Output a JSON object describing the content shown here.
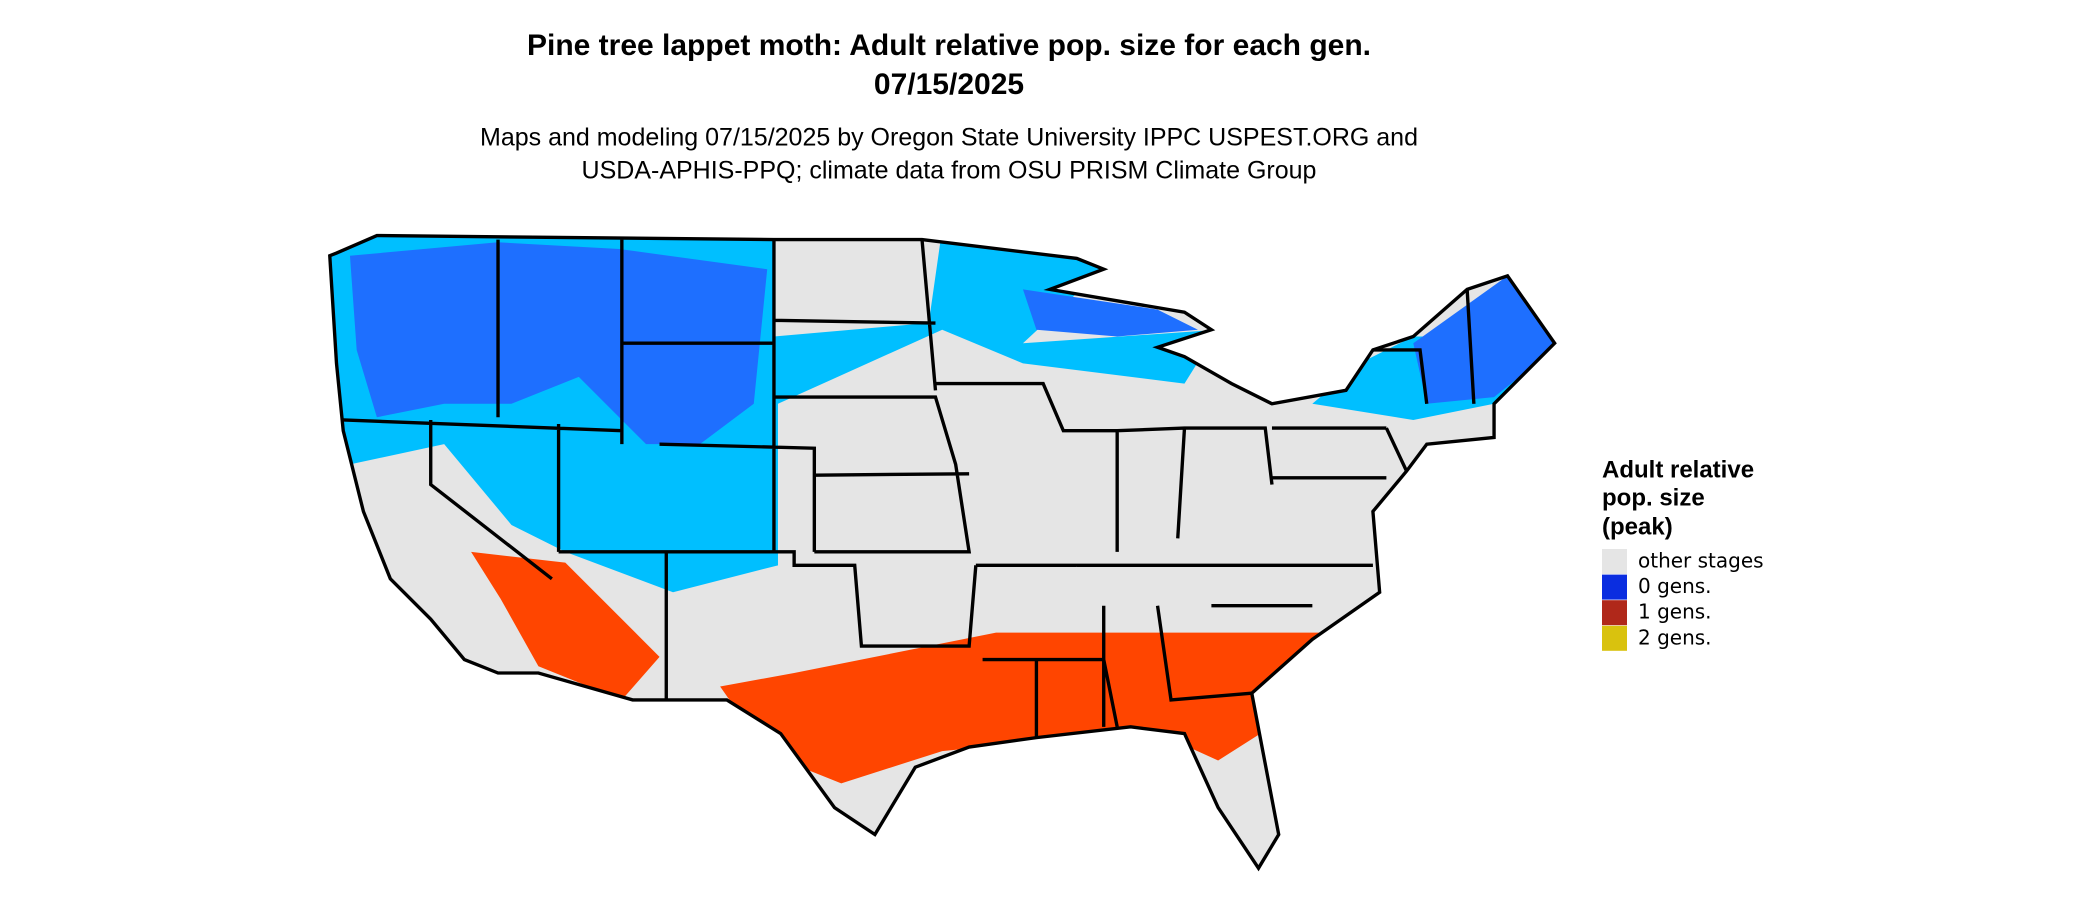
{
  "header": {
    "title_lines": [
      "Pine tree lappet moth: Adult relative pop. size for each gen.",
      "07/15/2025"
    ],
    "subtitle_lines": [
      "Maps and modeling 07/15/2025 by Oregon State University IPPC USPEST.ORG and",
      "USDA-APHIS-PPQ; climate data from OSU PRISM Climate Group"
    ]
  },
  "legend": {
    "title_lines": [
      "Adult relative",
      "pop. size",
      "(peak)"
    ],
    "items": [
      {
        "label": "other stages",
        "color": "#e5e5e5"
      },
      {
        "label": "0 gens.",
        "color": "#0a2de0"
      },
      {
        "label": "1 gens.",
        "color": "#b0281a"
      },
      {
        "label": "2 gens.",
        "color": "#d9c20e"
      }
    ]
  }
}
